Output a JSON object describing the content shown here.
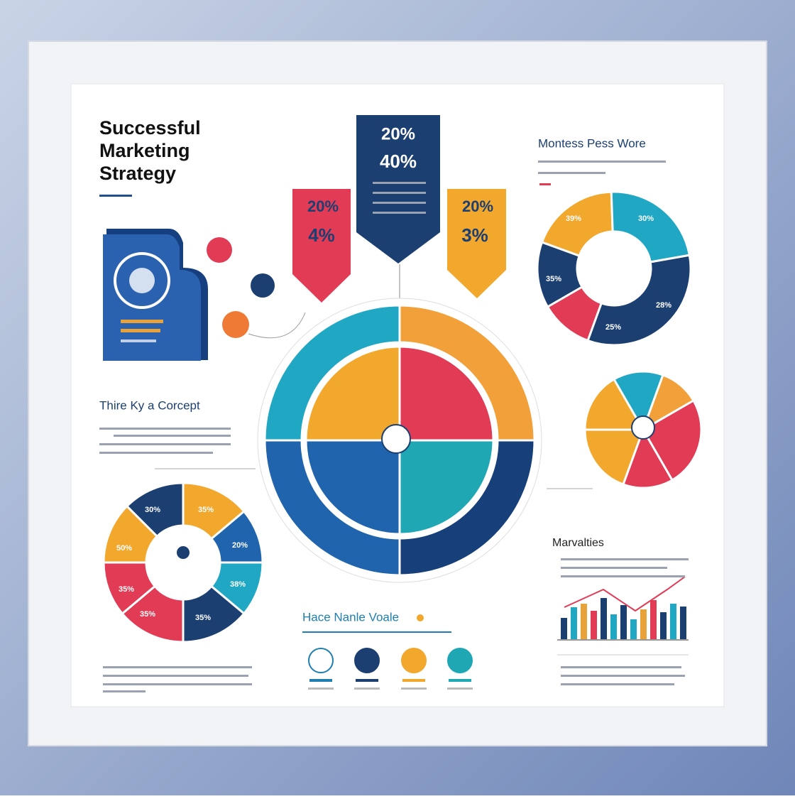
{
  "title": [
    "Successful",
    "Marketing",
    "Strategy"
  ],
  "banners": [
    {
      "top": "20%",
      "bottom": "4%"
    },
    {
      "top": "20%",
      "bottom": "40%"
    },
    {
      "top": "20%",
      "bottom": "3%"
    }
  ],
  "right_section": {
    "heading": "Montess Pess Wore",
    "pie_labels": [
      "39%",
      "30%",
      "35%",
      "28%",
      "25%"
    ]
  },
  "concept": {
    "heading": "Thire Ky a Corcept"
  },
  "left_pie": {
    "labels": [
      "30%",
      "35%",
      "50%",
      "20%",
      "35%",
      "38%",
      "35%",
      "35%"
    ]
  },
  "analytics": {
    "heading": "Marvalties"
  },
  "values": {
    "heading": "Hace Nanle Voale"
  }
}
